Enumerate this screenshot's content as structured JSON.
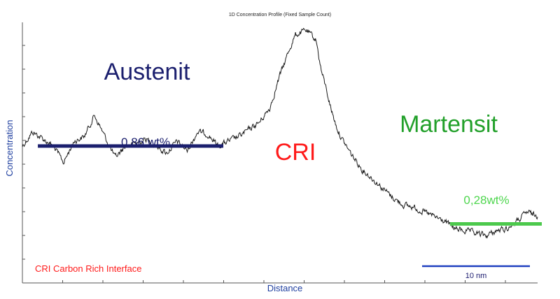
{
  "chart_data": {
    "type": "line",
    "title": "1D Concentration Profile (Fixed Sample Count)",
    "xlabel": "Distance",
    "ylabel": "Concentration",
    "xlim": [
      0,
      100
    ],
    "ylim": [
      0,
      100
    ],
    "grid": false,
    "legend": "none",
    "series": [
      {
        "color": "#1a1a1a",
        "x": [
          0,
          2,
          4,
          6,
          8,
          10,
          12,
          14,
          16,
          18,
          20,
          22,
          24,
          26,
          28,
          30,
          32,
          34,
          36,
          38,
          40,
          42,
          44,
          46,
          48,
          50,
          51,
          52,
          53,
          54,
          55,
          56,
          57,
          58,
          59,
          60,
          61,
          62,
          64,
          66,
          68,
          70,
          72,
          74,
          76,
          78,
          80,
          82,
          84,
          86,
          88,
          90,
          92,
          94,
          96,
          98,
          100
        ],
        "y": [
          50,
          56,
          53,
          50,
          43,
          52,
          54,
          63,
          54,
          45,
          50,
          51,
          53,
          50,
          47,
          52,
          48,
          56,
          55,
          50,
          52,
          54,
          57,
          60,
          66,
          80,
          86,
          92,
          97,
          98,
          99,
          97,
          95,
          82,
          74,
          65,
          58,
          53,
          46,
          40,
          36,
          32,
          28,
          25,
          24,
          22,
          20,
          18,
          15,
          14,
          13,
          12,
          14,
          15,
          18,
          22,
          20
        ]
      }
    ],
    "annotations": [
      {
        "text": "Austenit",
        "color": "#1b1f6e"
      },
      {
        "text": "CRI",
        "color": "#ff1a1a"
      },
      {
        "text": "Martensit",
        "color": "#22a02a"
      },
      {
        "text": "0,86 wt%",
        "color": "#1b1f6e"
      },
      {
        "text": "0,28wt%",
        "color": "#4fd64f"
      },
      {
        "text": "CRI Carbon Rich Interface",
        "color": "#ff1a1a"
      },
      {
        "text": "10 nm",
        "color": "#1a1a6e"
      }
    ],
    "levels": [
      {
        "value": 0.86,
        "y": 50,
        "x_start": 3,
        "x_end": 39,
        "color": "#1b1f6e"
      },
      {
        "value": 0.28,
        "y": 17,
        "x_start": 83,
        "x_end": 100,
        "color": "#4cc94c"
      }
    ],
    "scale_bar": {
      "label": "10 nm",
      "color": "#1f3fbf"
    }
  }
}
